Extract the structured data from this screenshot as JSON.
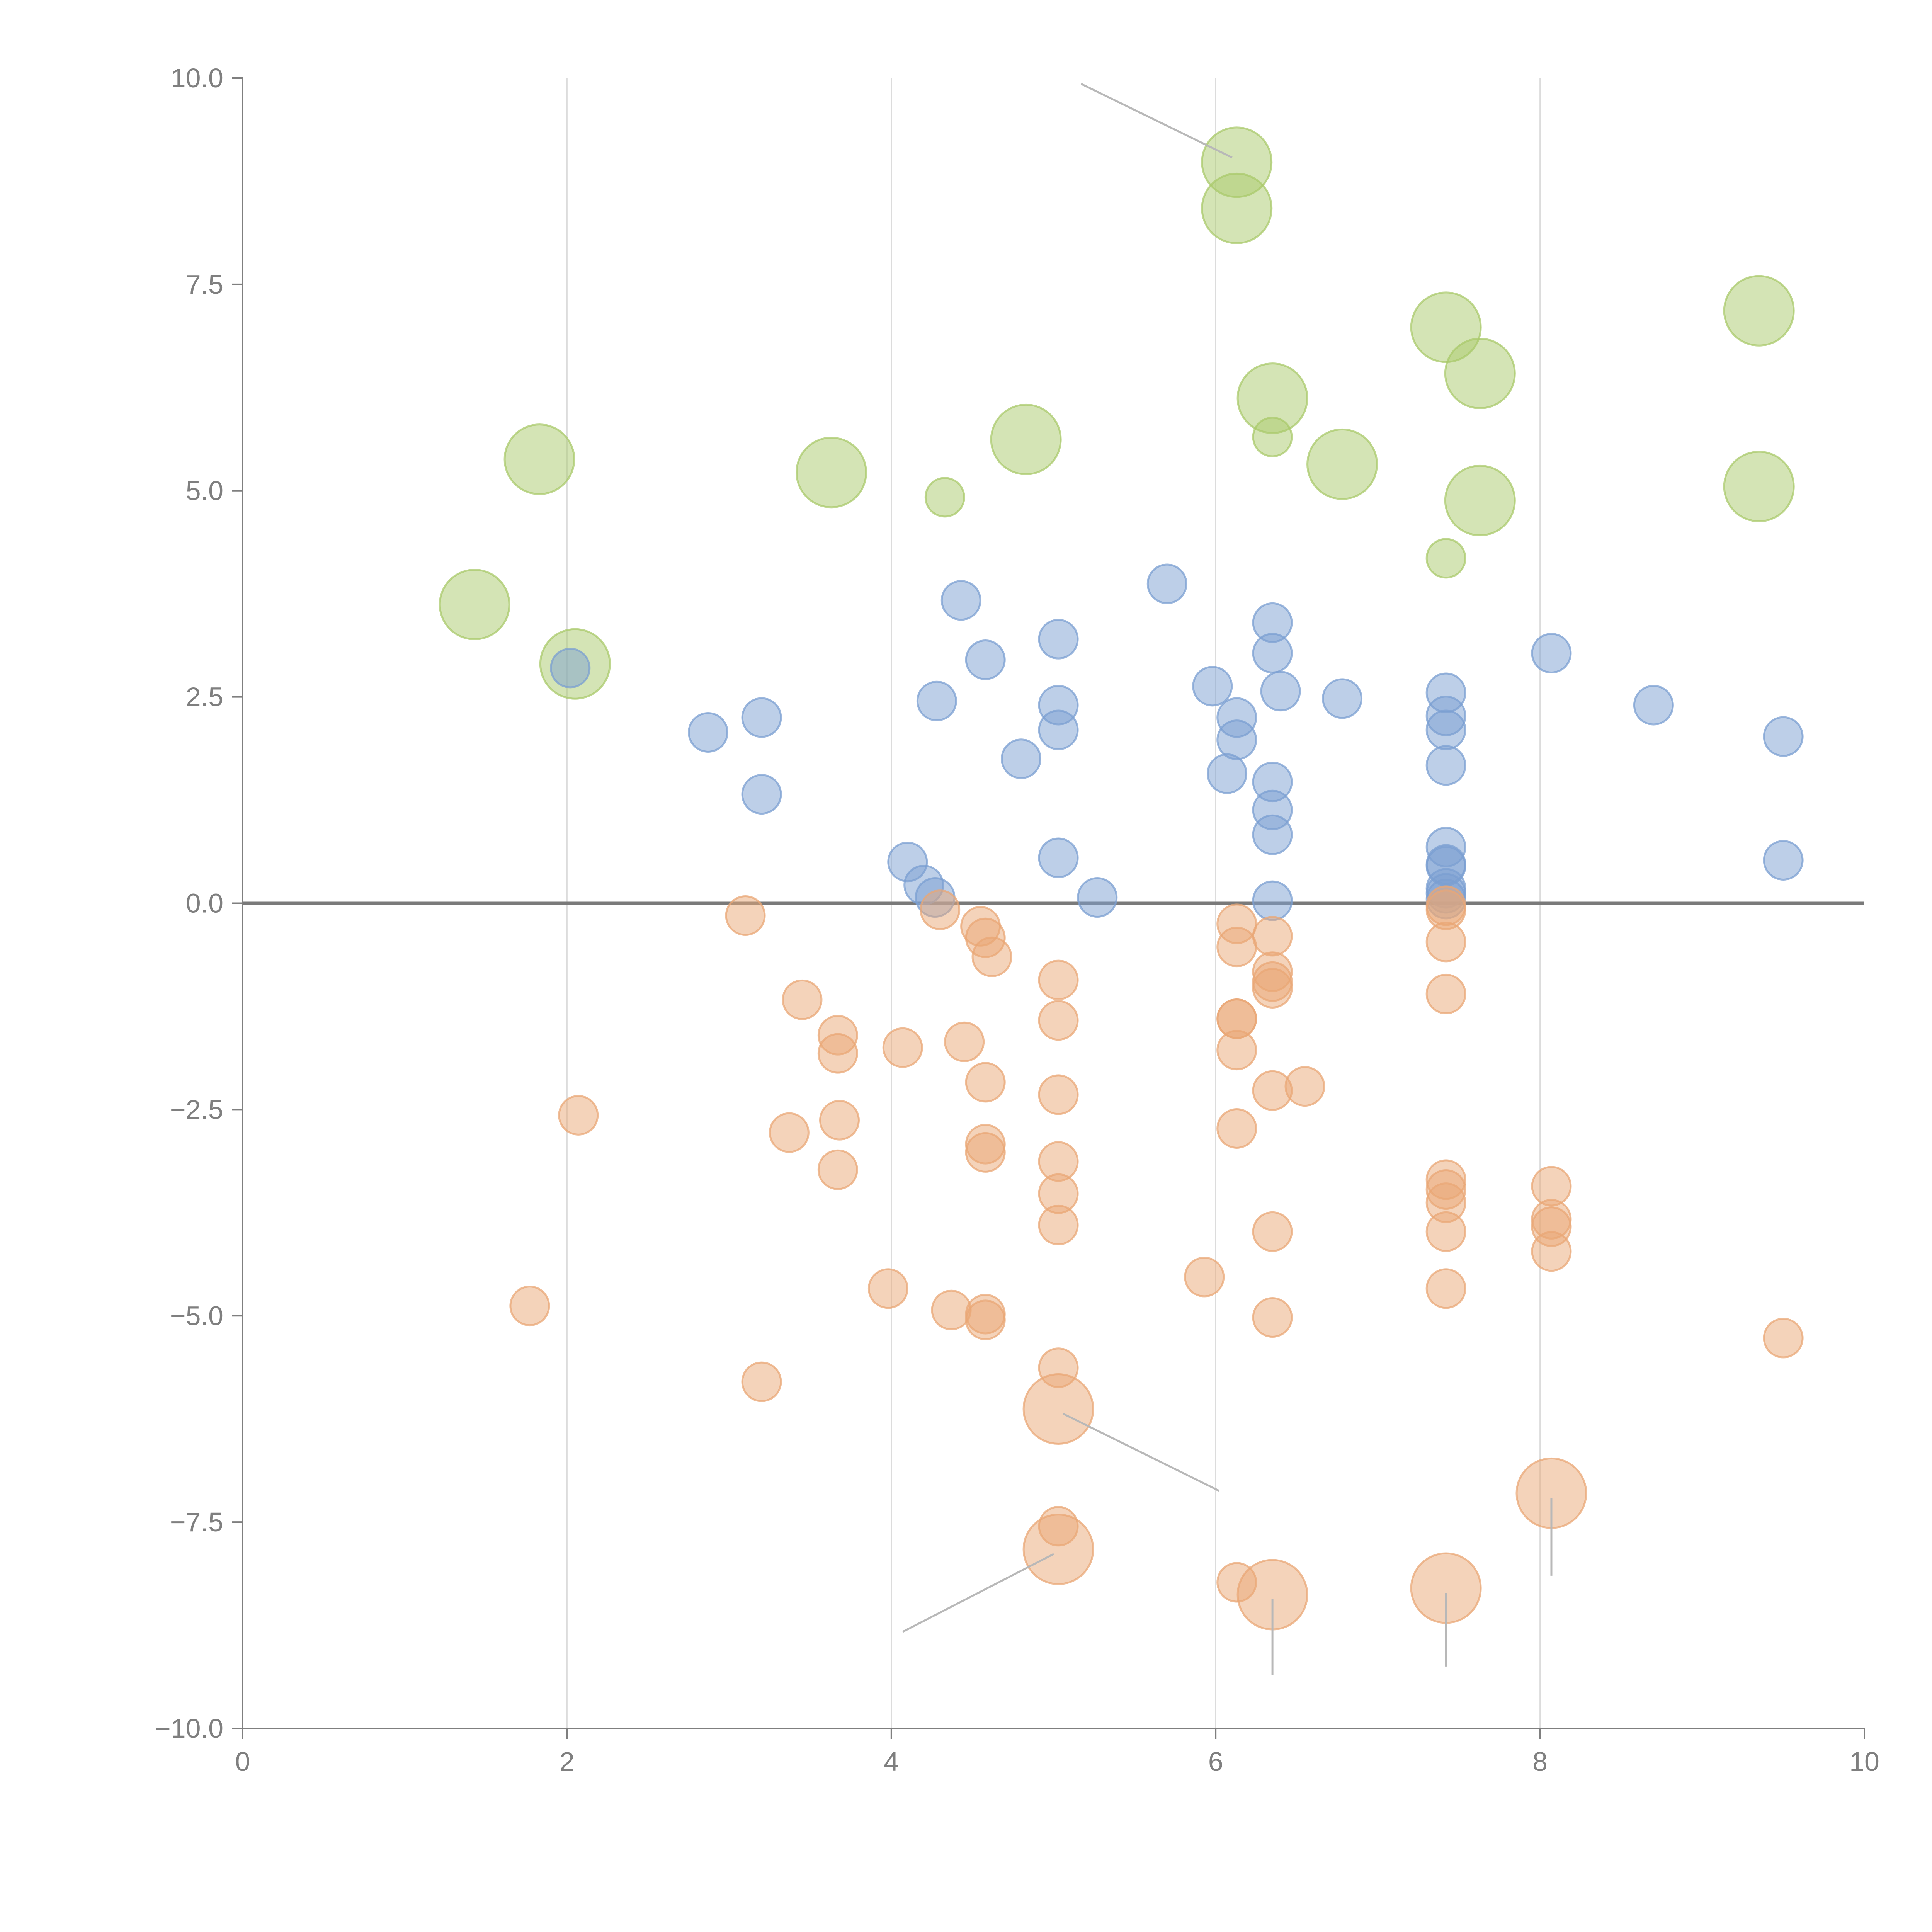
{
  "chart_data": {
    "type": "scatter",
    "title": "",
    "xlabel": "",
    "ylabel": "",
    "xlim": [
      0,
      10
    ],
    "ylim": [
      -10,
      10
    ],
    "x_ticks": [
      "0",
      "2",
      "4",
      "6",
      "8",
      "10"
    ],
    "x_tick_values": [
      0,
      2,
      4,
      6,
      8,
      10
    ],
    "y_ticks": [
      "10.0",
      "7.5",
      "5.0",
      "2.5",
      "0.0",
      "−2.5",
      "−5.0",
      "−7.5",
      "−10.0"
    ],
    "y_tick_values": [
      10,
      7.5,
      5,
      2.5,
      0,
      -2.5,
      -5,
      -7.5,
      -10
    ],
    "grid": "vertical",
    "reference_line": {
      "y": 0
    },
    "series": [
      {
        "name": "green",
        "color": "#a9c96b",
        "points": [
          {
            "x": 6.13,
            "y": 8.98,
            "s": 3
          },
          {
            "x": 6.13,
            "y": 8.42,
            "s": 3
          },
          {
            "x": 7.42,
            "y": 6.98,
            "s": 3
          },
          {
            "x": 9.35,
            "y": 7.18,
            "s": 3
          },
          {
            "x": 7.63,
            "y": 6.42,
            "s": 3
          },
          {
            "x": 6.35,
            "y": 6.12,
            "s": 3
          },
          {
            "x": 6.35,
            "y": 5.65,
            "s": 1
          },
          {
            "x": 4.83,
            "y": 5.62,
            "s": 3
          },
          {
            "x": 1.83,
            "y": 5.38,
            "s": 3
          },
          {
            "x": 3.63,
            "y": 5.22,
            "s": 3
          },
          {
            "x": 6.78,
            "y": 5.32,
            "s": 3
          },
          {
            "x": 9.35,
            "y": 5.05,
            "s": 3
          },
          {
            "x": 7.63,
            "y": 4.88,
            "s": 3
          },
          {
            "x": 4.33,
            "y": 4.92,
            "s": 1
          },
          {
            "x": 7.42,
            "y": 4.18,
            "s": 1
          },
          {
            "x": 1.43,
            "y": 3.62,
            "s": 3
          },
          {
            "x": 2.05,
            "y": 2.9,
            "s": 3
          }
        ]
      },
      {
        "name": "blue",
        "color": "#7b9fd2",
        "points": [
          {
            "x": 5.7,
            "y": 3.87,
            "s": 1
          },
          {
            "x": 4.43,
            "y": 3.67,
            "s": 1
          },
          {
            "x": 6.35,
            "y": 3.4,
            "s": 1
          },
          {
            "x": 5.03,
            "y": 3.2,
            "s": 1
          },
          {
            "x": 8.07,
            "y": 3.03,
            "s": 1
          },
          {
            "x": 6.35,
            "y": 3.03,
            "s": 1
          },
          {
            "x": 4.58,
            "y": 2.95,
            "s": 1
          },
          {
            "x": 2.02,
            "y": 2.85,
            "s": 1
          },
          {
            "x": 5.98,
            "y": 2.63,
            "s": 1
          },
          {
            "x": 6.4,
            "y": 2.57,
            "s": 1
          },
          {
            "x": 7.42,
            "y": 2.55,
            "s": 1
          },
          {
            "x": 6.78,
            "y": 2.48,
            "s": 1
          },
          {
            "x": 4.28,
            "y": 2.45,
            "s": 1
          },
          {
            "x": 8.7,
            "y": 2.4,
            "s": 1
          },
          {
            "x": 5.03,
            "y": 2.4,
            "s": 1
          },
          {
            "x": 7.42,
            "y": 2.27,
            "s": 1
          },
          {
            "x": 6.13,
            "y": 2.25,
            "s": 1
          },
          {
            "x": 3.2,
            "y": 2.25,
            "s": 1
          },
          {
            "x": 5.03,
            "y": 2.1,
            "s": 1
          },
          {
            "x": 7.42,
            "y": 2.1,
            "s": 1
          },
          {
            "x": 2.87,
            "y": 2.07,
            "s": 1
          },
          {
            "x": 9.5,
            "y": 2.02,
            "s": 1
          },
          {
            "x": 6.13,
            "y": 1.98,
            "s": 1
          },
          {
            "x": 4.8,
            "y": 1.75,
            "s": 1
          },
          {
            "x": 7.42,
            "y": 1.67,
            "s": 1
          },
          {
            "x": 6.07,
            "y": 1.57,
            "s": 1
          },
          {
            "x": 6.35,
            "y": 1.47,
            "s": 1
          },
          {
            "x": 3.2,
            "y": 1.32,
            "s": 1
          },
          {
            "x": 6.35,
            "y": 1.13,
            "s": 1
          },
          {
            "x": 6.35,
            "y": 0.83,
            "s": 1
          },
          {
            "x": 7.42,
            "y": 0.68,
            "s": 1
          },
          {
            "x": 5.03,
            "y": 0.55,
            "s": 1
          },
          {
            "x": 9.5,
            "y": 0.52,
            "s": 1
          },
          {
            "x": 4.1,
            "y": 0.5,
            "s": 1
          },
          {
            "x": 7.42,
            "y": 0.47,
            "s": 1
          },
          {
            "x": 7.42,
            "y": 0.45,
            "s": 1
          },
          {
            "x": 4.2,
            "y": 0.22,
            "s": 1
          },
          {
            "x": 7.42,
            "y": 0.18,
            "s": 1
          },
          {
            "x": 7.42,
            "y": 0.12,
            "s": 1
          },
          {
            "x": 4.27,
            "y": 0.07,
            "s": 1
          },
          {
            "x": 5.27,
            "y": 0.07,
            "s": 1
          },
          {
            "x": 7.42,
            "y": 0.05,
            "s": 1
          },
          {
            "x": 6.35,
            "y": 0.03,
            "s": 1
          }
        ]
      },
      {
        "name": "orange",
        "color": "#e9a775",
        "points": [
          {
            "x": 7.42,
            "y": -0.03,
            "s": 1
          },
          {
            "x": 7.42,
            "y": -0.08,
            "s": 1
          },
          {
            "x": 3.1,
            "y": -0.15,
            "s": 1
          },
          {
            "x": 4.3,
            "y": -0.08,
            "s": 1
          },
          {
            "x": 6.13,
            "y": -0.25,
            "s": 1
          },
          {
            "x": 4.55,
            "y": -0.28,
            "s": 1
          },
          {
            "x": 6.35,
            "y": -0.4,
            "s": 1
          },
          {
            "x": 4.58,
            "y": -0.42,
            "s": 1
          },
          {
            "x": 7.42,
            "y": -0.47,
            "s": 1
          },
          {
            "x": 6.13,
            "y": -0.53,
            "s": 1
          },
          {
            "x": 4.62,
            "y": -0.65,
            "s": 1
          },
          {
            "x": 6.35,
            "y": -0.83,
            "s": 1
          },
          {
            "x": 5.03,
            "y": -0.93,
            "s": 1
          },
          {
            "x": 6.35,
            "y": -0.95,
            "s": 1
          },
          {
            "x": 6.35,
            "y": -1.03,
            "s": 1
          },
          {
            "x": 7.42,
            "y": -1.1,
            "s": 1
          },
          {
            "x": 3.45,
            "y": -1.17,
            "s": 1
          },
          {
            "x": 6.13,
            "y": -1.4,
            "s": 1
          },
          {
            "x": 6.13,
            "y": -1.4,
            "s": 1
          },
          {
            "x": 5.03,
            "y": -1.42,
            "s": 1
          },
          {
            "x": 3.67,
            "y": -1.6,
            "s": 1
          },
          {
            "x": 4.45,
            "y": -1.68,
            "s": 1
          },
          {
            "x": 4.07,
            "y": -1.75,
            "s": 1
          },
          {
            "x": 3.67,
            "y": -1.82,
            "s": 1
          },
          {
            "x": 6.13,
            "y": -1.78,
            "s": 1
          },
          {
            "x": 4.58,
            "y": -2.17,
            "s": 1
          },
          {
            "x": 6.55,
            "y": -2.22,
            "s": 1
          },
          {
            "x": 6.35,
            "y": -2.27,
            "s": 1
          },
          {
            "x": 5.03,
            "y": -2.32,
            "s": 1
          },
          {
            "x": 2.07,
            "y": -2.57,
            "s": 1
          },
          {
            "x": 3.68,
            "y": -2.63,
            "s": 1
          },
          {
            "x": 6.13,
            "y": -2.73,
            "s": 1
          },
          {
            "x": 3.37,
            "y": -2.78,
            "s": 1
          },
          {
            "x": 4.58,
            "y": -2.92,
            "s": 1
          },
          {
            "x": 4.58,
            "y": -3.02,
            "s": 1
          },
          {
            "x": 5.03,
            "y": -3.13,
            "s": 1
          },
          {
            "x": 3.67,
            "y": -3.23,
            "s": 1
          },
          {
            "x": 7.42,
            "y": -3.35,
            "s": 1
          },
          {
            "x": 8.07,
            "y": -3.43,
            "s": 1
          },
          {
            "x": 7.42,
            "y": -3.47,
            "s": 1
          },
          {
            "x": 5.03,
            "y": -3.52,
            "s": 1
          },
          {
            "x": 7.42,
            "y": -3.63,
            "s": 1
          },
          {
            "x": 8.07,
            "y": -3.83,
            "s": 1
          },
          {
            "x": 5.03,
            "y": -3.9,
            "s": 1
          },
          {
            "x": 8.07,
            "y": -3.92,
            "s": 1
          },
          {
            "x": 6.35,
            "y": -3.98,
            "s": 1
          },
          {
            "x": 7.42,
            "y": -3.98,
            "s": 1
          },
          {
            "x": 8.07,
            "y": -4.22,
            "s": 1
          },
          {
            "x": 5.93,
            "y": -4.53,
            "s": 1
          },
          {
            "x": 3.98,
            "y": -4.67,
            "s": 1
          },
          {
            "x": 7.42,
            "y": -4.67,
            "s": 1
          },
          {
            "x": 1.77,
            "y": -4.88,
            "s": 1
          },
          {
            "x": 4.37,
            "y": -4.93,
            "s": 1
          },
          {
            "x": 4.58,
            "y": -4.98,
            "s": 1
          },
          {
            "x": 4.58,
            "y": -5.05,
            "s": 1
          },
          {
            "x": 6.35,
            "y": -5.02,
            "s": 1
          },
          {
            "x": 9.5,
            "y": -5.27,
            "s": 1
          },
          {
            "x": 5.03,
            "y": -5.63,
            "s": 1
          },
          {
            "x": 3.2,
            "y": -5.8,
            "s": 1
          },
          {
            "x": 5.03,
            "y": -6.13,
            "s": 3
          },
          {
            "x": 8.07,
            "y": -7.15,
            "s": 3
          },
          {
            "x": 5.03,
            "y": -7.55,
            "s": 1
          },
          {
            "x": 5.03,
            "y": -7.83,
            "s": 3
          },
          {
            "x": 6.13,
            "y": -8.23,
            "s": 1
          },
          {
            "x": 6.35,
            "y": -8.38,
            "s": 3
          },
          {
            "x": 7.42,
            "y": -8.3,
            "s": 3
          }
        ]
      }
    ],
    "leader_lines": [
      {
        "series": "green",
        "x1": 6.13,
        "y1": 8.98,
        "x2": 5.17,
        "y2": 9.93,
        "color": "#b8b8b8"
      },
      {
        "series": "orange",
        "x1": 5.03,
        "y1": -6.13,
        "x2": 6.02,
        "y2": -7.12,
        "color": "#b8b8b8"
      },
      {
        "series": "orange",
        "x1": 5.03,
        "y1": -7.83,
        "x2": 4.07,
        "y2": -8.83,
        "color": "#b8b8b8"
      },
      {
        "series": "orange",
        "x1": 6.35,
        "y1": -8.38,
        "x2": 6.35,
        "y2": -9.35,
        "color": "#b8b8b8"
      },
      {
        "series": "orange",
        "x1": 7.42,
        "y1": -8.3,
        "x2": 7.42,
        "y2": -9.25,
        "color": "#b8b8b8"
      },
      {
        "series": "orange",
        "x1": 8.07,
        "y1": -7.15,
        "x2": 8.07,
        "y2": -8.15,
        "color": "#b8b8b8"
      }
    ]
  }
}
